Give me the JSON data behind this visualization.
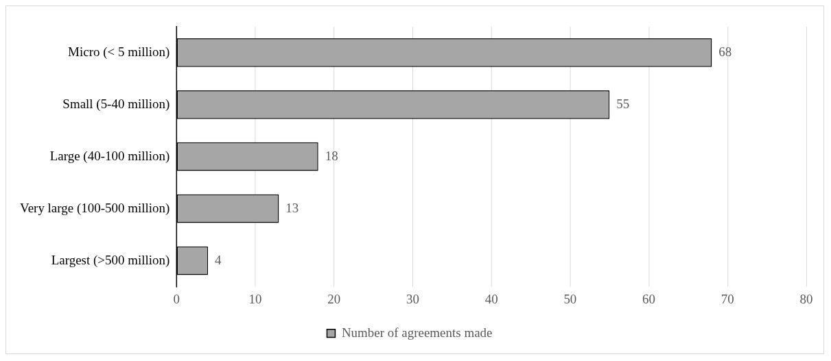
{
  "chart_data": {
    "type": "bar",
    "orientation": "horizontal",
    "categories": [
      "Micro (< 5 million)",
      "Small (5-40 million)",
      "Large (40-100 million)",
      "Very large (100-500 million)",
      "Largest (>500 million)"
    ],
    "series": [
      {
        "name": "Number of agreements made",
        "color": "#a6a6a6",
        "values": [
          68,
          55,
          18,
          13,
          4
        ]
      }
    ],
    "xlim": [
      0,
      80
    ],
    "xticks": [
      0,
      10,
      20,
      30,
      40,
      50,
      60,
      70,
      80
    ],
    "grid": "x",
    "legend": "bottom",
    "data_labels": true
  }
}
